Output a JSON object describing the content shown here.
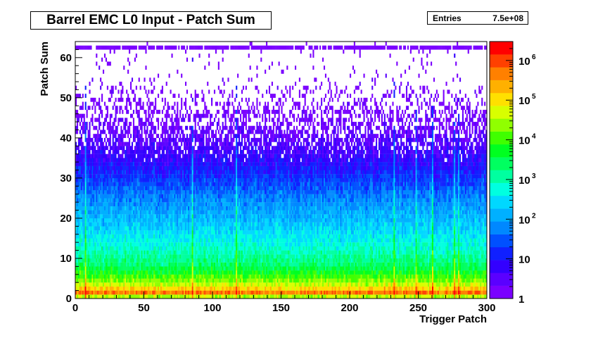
{
  "chart_data": {
    "type": "heatmap",
    "title": "Barrel EMC L0 Input - Patch Sum",
    "stats": {
      "label": "Entries",
      "value": "7.5e+08"
    },
    "xlabel": "Trigger Patch",
    "ylabel": "Patch Sum",
    "xlim": [
      0,
      300
    ],
    "ylim": [
      0,
      64
    ],
    "x_ticks": [
      0,
      50,
      100,
      150,
      200,
      250,
      300
    ],
    "y_ticks": [
      0,
      10,
      20,
      30,
      40,
      50,
      60
    ],
    "z_scale": "log",
    "z_range": [
      1,
      3000000
    ],
    "colorbar_ticks": [
      {
        "value": 1,
        "label": "1"
      },
      {
        "value": 10,
        "label": "10"
      },
      {
        "value": 100,
        "label": "10",
        "sup": "2"
      },
      {
        "value": 1000,
        "label": "10",
        "sup": "3"
      },
      {
        "value": 10000,
        "label": "10",
        "sup": "4"
      },
      {
        "value": 100000,
        "label": "10",
        "sup": "5"
      },
      {
        "value": 1000000,
        "label": "10",
        "sup": "6"
      }
    ],
    "palette": [
      "#7a00ff",
      "#5a00ff",
      "#3300ff",
      "#1020ff",
      "#0050ff",
      "#0088ff",
      "#00b0ff",
      "#00d8ff",
      "#00ffe0",
      "#00ffa0",
      "#00ff60",
      "#00ff20",
      "#40ff00",
      "#90ff00",
      "#d8ff00",
      "#ffe000",
      "#ffb000",
      "#ff8000",
      "#ff4000",
      "#ff0000"
    ],
    "density_profile": [
      {
        "y": 0,
        "log10_count": 3.0
      },
      {
        "y": 1,
        "log10_count": 6.1
      },
      {
        "y": 2,
        "log10_count": 5.3
      },
      {
        "y": 4,
        "log10_count": 4.4
      },
      {
        "y": 6,
        "log10_count": 3.9
      },
      {
        "y": 8,
        "log10_count": 3.4
      },
      {
        "y": 12,
        "log10_count": 2.9
      },
      {
        "y": 18,
        "log10_count": 2.35
      },
      {
        "y": 25,
        "log10_count": 1.75
      },
      {
        "y": 30,
        "log10_count": 1.25
      },
      {
        "y": 35,
        "log10_count": 0.8
      },
      {
        "y": 40,
        "log10_count": 0.45
      },
      {
        "y": 47,
        "log10_count": 0.1
      },
      {
        "y": 55,
        "log10_count": 0.0
      },
      {
        "y": 62,
        "log10_count": 0.0
      }
    ],
    "saturation_row_y": 62,
    "hot_patches": [
      7,
      85,
      117,
      232,
      248,
      260,
      276,
      279
    ],
    "grid": false,
    "legend": "right"
  }
}
